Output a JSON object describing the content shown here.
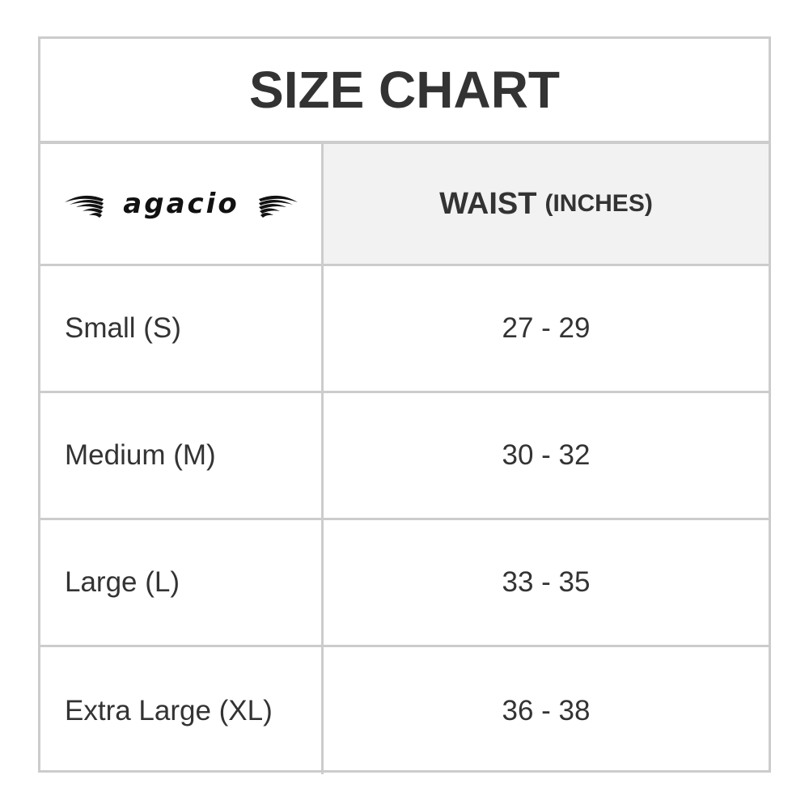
{
  "title": "SIZE CHART",
  "brand": {
    "logo_text": "agacio",
    "icon": "wings-logo"
  },
  "header": {
    "column": "WAIST",
    "unit": "(INCHES)"
  },
  "colors": {
    "border": "#cccccc",
    "header_bg": "#f2f2f2",
    "text": "#333333"
  },
  "rows": [
    {
      "size": "Small (S)",
      "waist": "27 - 29"
    },
    {
      "size": "Medium (M)",
      "waist": "30 - 32"
    },
    {
      "size": "Large (L)",
      "waist": "33 - 35"
    },
    {
      "size": "Extra Large (XL)",
      "waist": "36 - 38"
    }
  ]
}
